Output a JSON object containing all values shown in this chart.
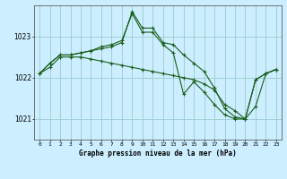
{
  "xlabel": "Graphe pression niveau de la mer (hPa)",
  "bg_color": "#cceeff",
  "grid_color": "#99cccc",
  "line_color": "#1a5e1a",
  "ylim": [
    1020.5,
    1023.75
  ],
  "xlim": [
    -0.5,
    23.5
  ],
  "yticks": [
    1021,
    1022,
    1023
  ],
  "xtick_labels": [
    "0",
    "1",
    "2",
    "3",
    "4",
    "5",
    "6",
    "7",
    "8",
    "9",
    "10",
    "11",
    "12",
    "13",
    "14",
    "15",
    "16",
    "17",
    "18",
    "19",
    "20",
    "21",
    "22",
    "23"
  ],
  "series1": [
    1022.1,
    1022.35,
    1022.55,
    1022.55,
    1022.6,
    1022.65,
    1022.7,
    1022.75,
    1022.85,
    1023.6,
    1023.2,
    1023.2,
    1022.85,
    1022.8,
    1022.55,
    1022.35,
    1022.15,
    1021.75,
    1021.25,
    1021.05,
    1021.0,
    1021.95,
    1022.1,
    1022.2
  ],
  "series2": [
    1022.1,
    1022.25,
    1022.5,
    1022.5,
    1022.5,
    1022.45,
    1022.4,
    1022.35,
    1022.3,
    1022.25,
    1022.2,
    1022.15,
    1022.1,
    1022.05,
    1022.0,
    1021.95,
    1021.85,
    1021.7,
    1021.35,
    1021.2,
    1021.0,
    1021.3,
    1022.1,
    1022.2
  ],
  "series3": [
    1022.1,
    1022.35,
    1022.55,
    1022.55,
    1022.6,
    1022.65,
    1022.75,
    1022.8,
    1022.9,
    1023.55,
    1023.1,
    1023.1,
    1022.8,
    1022.6,
    1021.6,
    1021.9,
    1021.65,
    1021.35,
    1021.1,
    1021.0,
    1021.0,
    1021.95,
    1022.1,
    1022.2
  ]
}
